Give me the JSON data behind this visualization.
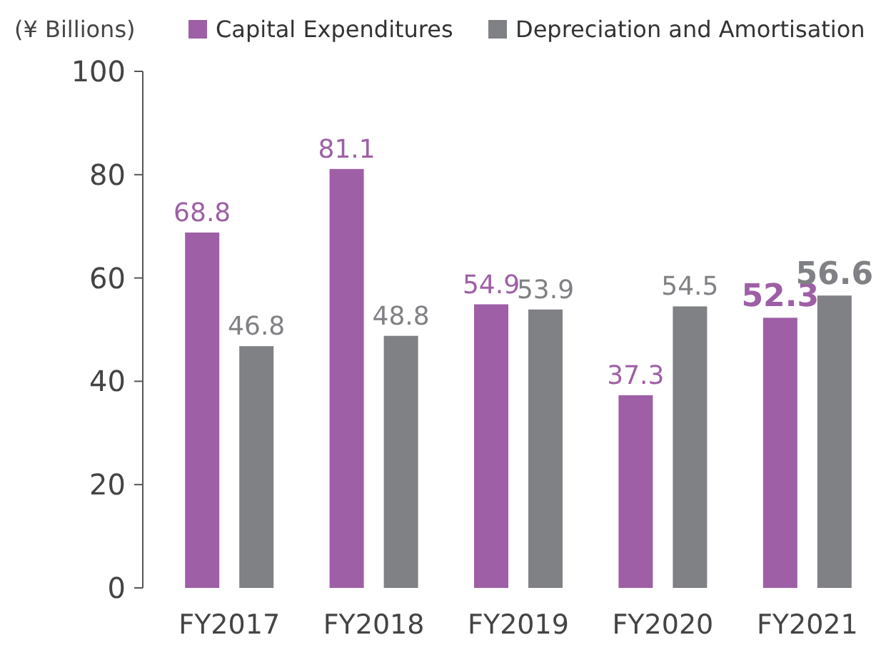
{
  "chart_data": {
    "type": "bar",
    "ylabel": "(¥ Billions)",
    "categories": [
      "FY2017",
      "FY2018",
      "FY2019",
      "FY2020",
      "FY2021"
    ],
    "series": [
      {
        "name": "Capital Expenditures",
        "color": "#9e5fa6",
        "values": [
          68.8,
          81.1,
          54.9,
          37.3,
          52.3
        ]
      },
      {
        "name": "Depreciation and Amortisation",
        "color": "#808185",
        "values": [
          46.8,
          48.8,
          53.9,
          54.5,
          56.6
        ]
      }
    ],
    "ylim": [
      0,
      100
    ],
    "yticks": [
      0,
      20,
      40,
      60,
      80,
      100
    ],
    "data_labels": true,
    "legend": "top",
    "grid": false
  }
}
